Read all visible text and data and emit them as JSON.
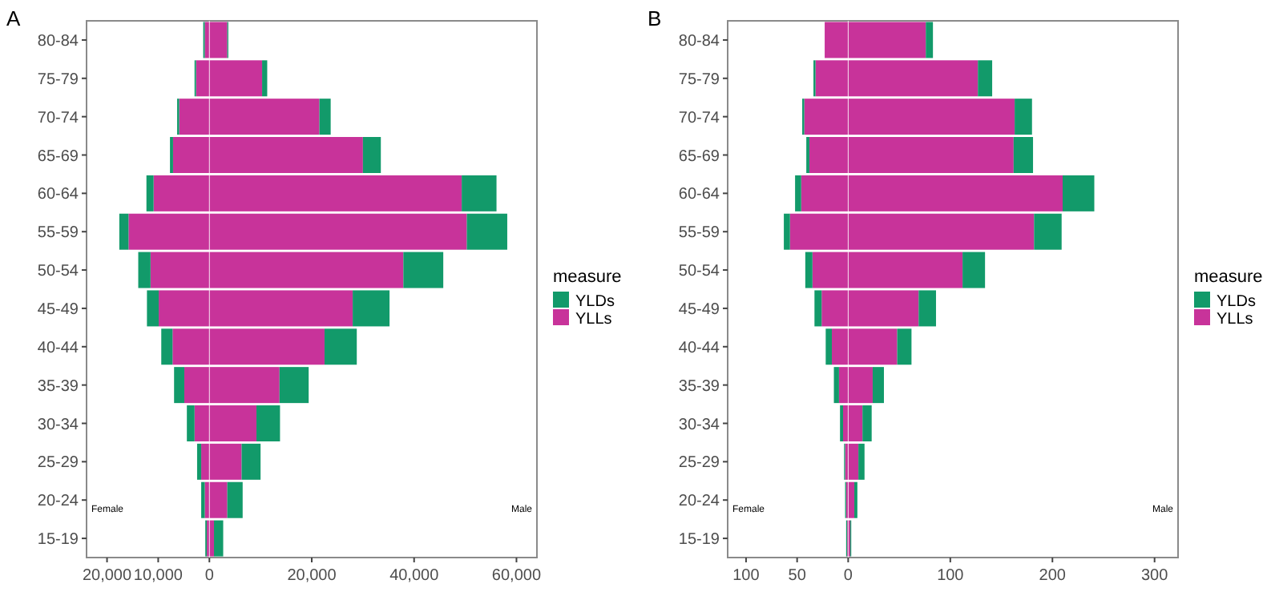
{
  "chart_data": [
    {
      "type": "bar",
      "title": "A",
      "orientation": "horizontal",
      "stacked": true,
      "legend": "right",
      "legend_title": "measure",
      "grid": false,
      "categories": [
        "80-84",
        "75-79",
        "70-74",
        "65-69",
        "60-64",
        "55-59",
        "50-54",
        "45-49",
        "40-44",
        "35-39",
        "30-34",
        "25-29",
        "20-24",
        "15-19"
      ],
      "xlim": [
        -24000,
        64000
      ],
      "xticks": [
        {
          "value": -20000,
          "label": "20,000"
        },
        {
          "value": -10000,
          "label": "10,000"
        },
        0,
        {
          "value": 20000,
          "label": "20,000"
        },
        {
          "value": 40000,
          "label": "40,000"
        },
        {
          "value": 60000,
          "label": "60,000"
        }
      ],
      "ref_lines": [
        {
          "axis": "x",
          "value": 0,
          "color": "#ffffff"
        }
      ],
      "annotations": [
        "Female",
        "Male"
      ],
      "series": [
        {
          "name": "YLLs",
          "color": "#c8339a",
          "values": [
            3500,
            10300,
            21500,
            30000,
            49300,
            50300,
            37900,
            28000,
            22500,
            13700,
            9200,
            6300,
            3500,
            900
          ]
        },
        {
          "name": "YLDs",
          "color": "#129a6a",
          "values": [
            200,
            1000,
            2200,
            3500,
            6800,
            7900,
            7800,
            7200,
            6300,
            5700,
            4600,
            3700,
            3000,
            1800
          ]
        },
        {
          "color": "#c8339a",
          "values": [
            -900,
            -2600,
            -5900,
            -7100,
            -10900,
            -15800,
            -11500,
            -9900,
            -7200,
            -4900,
            -2900,
            -1600,
            -900,
            -500
          ]
        },
        {
          "color": "#129a6a",
          "values": [
            -300,
            -300,
            -400,
            -600,
            -1400,
            -1800,
            -2400,
            -2300,
            -2200,
            -2000,
            -1500,
            -800,
            -700,
            -300
          ]
        }
      ]
    },
    {
      "type": "bar",
      "title": "B",
      "orientation": "horizontal",
      "stacked": true,
      "legend": "right",
      "legend_title": "measure",
      "grid": false,
      "categories": [
        "80-84",
        "75-79",
        "70-74",
        "65-69",
        "60-64",
        "55-59",
        "50-54",
        "45-49",
        "40-44",
        "35-39",
        "30-34",
        "25-29",
        "20-24",
        "15-19"
      ],
      "xlim": [
        -118,
        323
      ],
      "xticks": [
        {
          "value": -100,
          "label": "100"
        },
        {
          "value": -50,
          "label": "50"
        },
        0,
        100,
        200,
        300
      ],
      "ref_lines": [
        {
          "axis": "x",
          "value": 0,
          "color": "#ffffff"
        }
      ],
      "annotations": [
        "Female",
        "Male"
      ],
      "series": [
        {
          "name": "YLLs",
          "color": "#c8339a",
          "values": [
            76,
            127,
            163,
            162,
            210,
            182,
            112,
            69,
            48,
            24,
            14,
            10,
            6,
            2
          ]
        },
        {
          "name": "YLDs",
          "color": "#129a6a",
          "values": [
            7,
            14,
            17,
            19,
            31,
            27,
            22,
            17,
            14,
            11,
            9,
            6,
            3,
            1
          ]
        },
        {
          "color": "#c8339a",
          "values": [
            -23,
            -32,
            -43,
            -38,
            -46,
            -57,
            -35,
            -26,
            -16,
            -9,
            -5,
            -3,
            -2,
            -1
          ]
        },
        {
          "color": "#129a6a",
          "values": [
            0,
            -2,
            -2,
            -3,
            -6,
            -6,
            -7,
            -7,
            -6,
            -5,
            -3,
            -1,
            -1,
            -1
          ]
        }
      ]
    }
  ]
}
